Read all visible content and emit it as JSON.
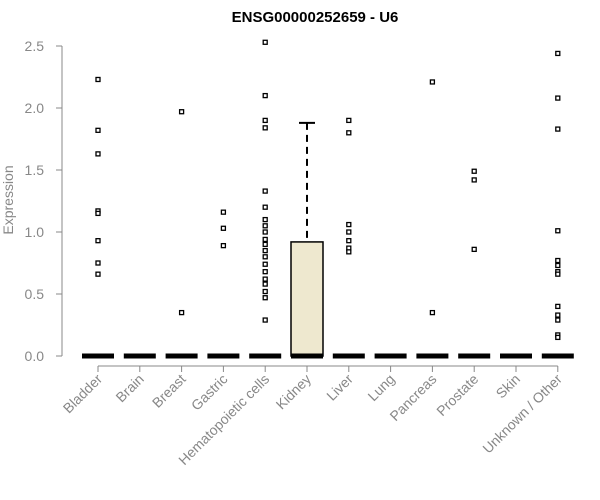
{
  "chart_data": {
    "type": "box",
    "title": "ENSG00000252659 - U6",
    "ylabel": "Expression",
    "xlabel": "",
    "ylim": [
      0,
      2.5
    ],
    "yticks": [
      "0.0",
      "0.5",
      "1.0",
      "1.5",
      "2.0",
      "2.5"
    ],
    "grid": false,
    "categories": [
      "Bladder",
      "Brain",
      "Breast",
      "Gastric",
      "Hematopoietic cells",
      "Kidney",
      "Liver",
      "Lung",
      "Pancreas",
      "Prostate",
      "Skin",
      "Unknown / Other"
    ],
    "boxes": [
      {
        "category": "Bladder",
        "q1": 0,
        "median": 0,
        "q3": 0,
        "whisker_low": 0,
        "whisker_high": 0,
        "fill": "#F4F0E0",
        "outliers": [
          2.23,
          1.82,
          1.63,
          1.17,
          1.15,
          0.93,
          0.75,
          0.66
        ]
      },
      {
        "category": "Brain",
        "q1": 0,
        "median": 0,
        "q3": 0,
        "whisker_low": 0,
        "whisker_high": 0,
        "fill": "#F4F0E0",
        "outliers": []
      },
      {
        "category": "Breast",
        "q1": 0,
        "median": 0,
        "q3": 0,
        "whisker_low": 0,
        "whisker_high": 0,
        "fill": "#F4F0E0",
        "outliers": [
          1.97,
          0.35
        ]
      },
      {
        "category": "Gastric",
        "q1": 0,
        "median": 0,
        "q3": 0,
        "whisker_low": 0,
        "whisker_high": 0,
        "fill": "#F4F0E0",
        "outliers": [
          1.16,
          1.03,
          0.89
        ]
      },
      {
        "category": "Hematopoietic cells",
        "q1": 0,
        "median": 0,
        "q3": 0,
        "whisker_low": 0,
        "whisker_high": 0,
        "fill": "#F4F0E0",
        "outliers": [
          2.53,
          2.1,
          1.9,
          1.84,
          1.33,
          1.2,
          1.1,
          1.05,
          1.0,
          0.94,
          0.9,
          0.85,
          0.8,
          0.74,
          0.68,
          0.62,
          0.58,
          0.52,
          0.47,
          0.29
        ]
      },
      {
        "category": "Kidney",
        "q1": 0,
        "median": 0,
        "q3": 0.92,
        "whisker_low": 0,
        "whisker_high": 1.88,
        "fill": "#EEE8CF",
        "outliers": []
      },
      {
        "category": "Liver",
        "q1": 0,
        "median": 0,
        "q3": 0,
        "whisker_low": 0,
        "whisker_high": 0,
        "fill": "#F4F0E0",
        "outliers": [
          1.9,
          1.8,
          1.06,
          1.0,
          0.93,
          0.87,
          0.84
        ]
      },
      {
        "category": "Lung",
        "q1": 0,
        "median": 0,
        "q3": 0,
        "whisker_low": 0,
        "whisker_high": 0,
        "fill": "#F4F0E0",
        "outliers": []
      },
      {
        "category": "Pancreas",
        "q1": 0,
        "median": 0,
        "q3": 0,
        "whisker_low": 0,
        "whisker_high": 0,
        "fill": "#F4F0E0",
        "outliers": [
          2.21,
          0.35
        ]
      },
      {
        "category": "Prostate",
        "q1": 0,
        "median": 0,
        "q3": 0,
        "whisker_low": 0,
        "whisker_high": 0,
        "fill": "#F4F0E0",
        "outliers": [
          1.49,
          1.42,
          0.86
        ]
      },
      {
        "category": "Skin",
        "q1": 0,
        "median": 0,
        "q3": 0,
        "whisker_low": 0,
        "whisker_high": 0,
        "fill": "#F4F0E0",
        "outliers": []
      },
      {
        "category": "Unknown / Other",
        "q1": 0,
        "median": 0,
        "q3": 0,
        "whisker_low": 0,
        "whisker_high": 0,
        "fill": "#F4F0E0",
        "outliers": [
          2.44,
          2.08,
          1.83,
          1.01,
          0.77,
          0.73,
          0.68,
          0.66,
          0.4,
          0.33,
          0.29,
          0.17,
          0.15
        ]
      }
    ]
  }
}
